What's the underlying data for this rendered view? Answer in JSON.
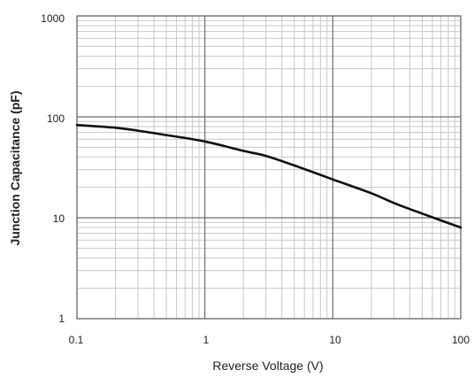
{
  "chart_data": {
    "type": "line",
    "title": "",
    "xlabel": "Reverse Voltage (V)",
    "ylabel": "Junction Capacitance (pF)",
    "x_scale": "log",
    "y_scale": "log",
    "xlim": [
      0.1,
      100
    ],
    "ylim": [
      1,
      1000
    ],
    "grid": true,
    "legend": "none",
    "x_ticks": [
      "0.1",
      "1",
      "10",
      "100"
    ],
    "y_ticks": [
      "1",
      "10",
      "100",
      "1000"
    ],
    "series": [
      {
        "x": [
          0.1,
          0.2,
          0.3,
          0.5,
          1,
          2,
          3,
          5,
          10,
          20,
          30,
          50,
          100
        ],
        "y": [
          83,
          78,
          73,
          66,
          57,
          46,
          41,
          33,
          24,
          17.5,
          14,
          11,
          8
        ]
      }
    ],
    "colors": {
      "line": "#111111",
      "major_grid": "#6f6f6f",
      "minor_grid": "#c8c8c8",
      "frame": "#6f6f6f"
    }
  }
}
